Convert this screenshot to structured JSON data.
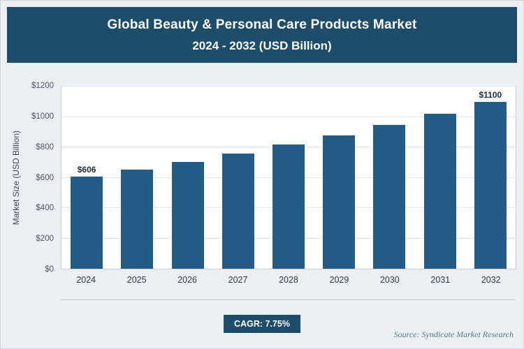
{
  "header": {
    "title": "Global Beauty & Personal Care Products Market",
    "subtitle": "2024 - 2032 (USD Billion)"
  },
  "chart_data": {
    "type": "bar",
    "title": "Global Beauty & Personal Care Products Market",
    "subtitle": "2024 - 2032 (USD Billion)",
    "categories": [
      "2024",
      "2025",
      "2026",
      "2027",
      "2028",
      "2029",
      "2030",
      "2031",
      "2032"
    ],
    "values": [
      606,
      653,
      704,
      758,
      817,
      880,
      948,
      1022,
      1100
    ],
    "data_labels": [
      "$606",
      "",
      "",
      "",
      "",
      "",
      "",
      "",
      "$1100"
    ],
    "xlabel": "",
    "ylabel": "Market Size (USD Billion)",
    "ylim": [
      0,
      1200
    ],
    "ytick_step": 200,
    "yticks": [
      "$0",
      "$200",
      "$400",
      "$600",
      "$800",
      "$1000",
      "$1200"
    ],
    "grid": true,
    "legend_position": "none"
  },
  "footer": {
    "cagr_label": "CAGR: 7.75%",
    "source": "Source: Syndicate Market Research"
  },
  "colors": {
    "header_bg": "#1e4d6b",
    "badge_bg": "#1e4d6b",
    "bar": "#235d87",
    "page_bg": "#edf0f2",
    "plot_bg": "#ffffff",
    "grid_line": "#e3e7ea",
    "source_text": "#5a7486"
  }
}
